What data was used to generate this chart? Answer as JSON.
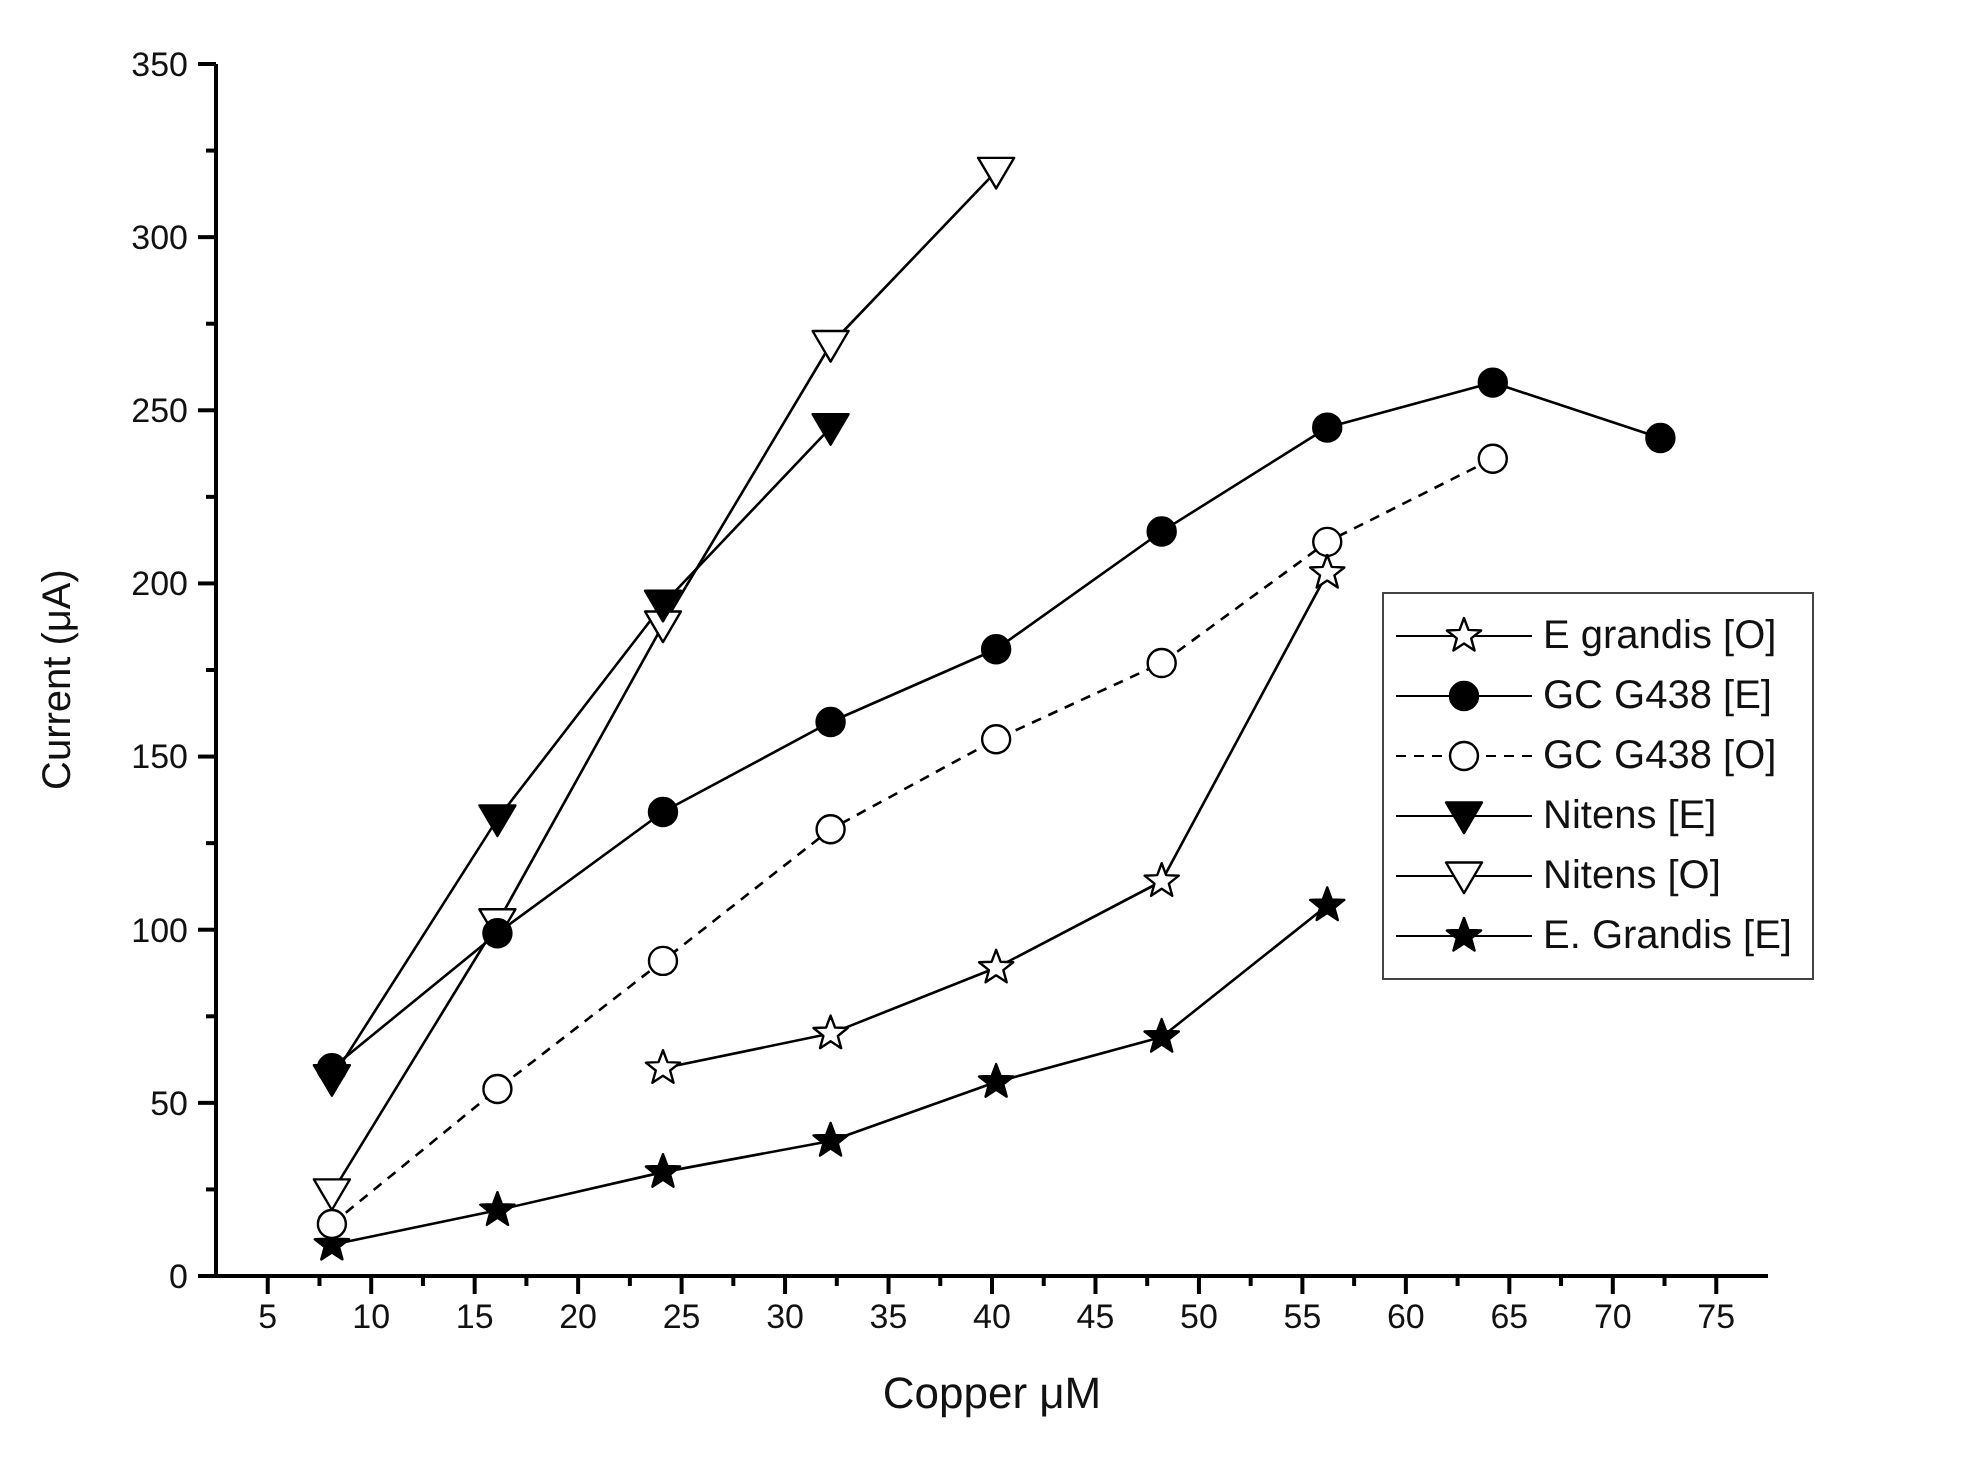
{
  "chart_data": {
    "type": "line",
    "xlabel": "Copper μM",
    "ylabel": "Current (μA)",
    "xlim": [
      2.5,
      77.5
    ],
    "ylim": [
      0,
      350
    ],
    "xticks": [
      5,
      {
        "value": 7.5,
        "label": null
      },
      10,
      {
        "value": 12.5,
        "label": null
      },
      15,
      {
        "value": 17.5,
        "label": null
      },
      20,
      {
        "value": 22.5,
        "label": null
      },
      25,
      {
        "value": 27.5,
        "label": null
      },
      30,
      {
        "value": 32.5,
        "label": null
      },
      35,
      {
        "value": 37.5,
        "label": null
      },
      40,
      {
        "value": 42.5,
        "label": null
      },
      45,
      {
        "value": 47.5,
        "label": null
      },
      50,
      {
        "value": 52.5,
        "label": null
      },
      55,
      {
        "value": 57.5,
        "label": null
      },
      60,
      {
        "value": 62.5,
        "label": null
      },
      65,
      {
        "value": 67.5,
        "label": null
      },
      70,
      {
        "value": 72.5,
        "label": null
      },
      75
    ],
    "yticks": [
      0,
      {
        "value": 25,
        "label": null
      },
      50,
      {
        "value": 75,
        "label": null
      },
      100,
      {
        "value": 125,
        "label": null
      },
      150,
      {
        "value": 175,
        "label": null
      },
      200,
      {
        "value": 225,
        "label": null
      },
      250,
      {
        "value": 275,
        "label": null
      },
      300,
      {
        "value": 325,
        "label": null
      },
      350
    ],
    "grid": false,
    "legend": "right",
    "line_style": "solid",
    "series": [
      {
        "name": "E grandis [O]",
        "color": "#000000",
        "marker": "star",
        "x": [
          24.1,
          32.2,
          40.2,
          48.2,
          56.2
        ],
        "values": [
          60,
          70,
          89,
          114,
          203
        ]
      },
      {
        "name": "GC G438 [E]",
        "color": "#000000",
        "marker": "circle",
        "x": [
          8.1,
          16.1,
          24.1,
          32.2,
          40.2,
          48.2,
          56.2,
          64.2,
          72.3
        ],
        "values": [
          60,
          99,
          134,
          160,
          181,
          215,
          245,
          258,
          242
        ]
      },
      {
        "name": "GC G438 [O]",
        "color": "#000000",
        "marker": "circle",
        "line_style": "dashed",
        "x": [
          8.1,
          16.1,
          24.1,
          32.2,
          40.2,
          48.2,
          56.2,
          64.2
        ],
        "values": [
          15,
          54,
          91,
          129,
          155,
          177,
          212,
          236
        ]
      },
      {
        "name": "Nitens [E]",
        "color": "#000000",
        "marker": "triangle",
        "x": [
          8.1,
          16.1,
          24.1,
          32.2
        ],
        "values": [
          57,
          132,
          194,
          245
        ]
      },
      {
        "name": "Nitens [O]",
        "color": "#000000",
        "marker": "triangle",
        "x": [
          8.1,
          16.1,
          24.1,
          32.2,
          40.2
        ],
        "values": [
          24,
          102,
          188,
          269,
          319
        ]
      },
      {
        "name": "E. Grandis [E]",
        "color": "#000000",
        "marker": "star",
        "x": [
          8.1,
          16.1,
          24.1,
          32.2,
          40.2,
          48.2,
          56.2
        ],
        "values": [
          9,
          19,
          30,
          39,
          56,
          69,
          107
        ]
      }
    ]
  }
}
